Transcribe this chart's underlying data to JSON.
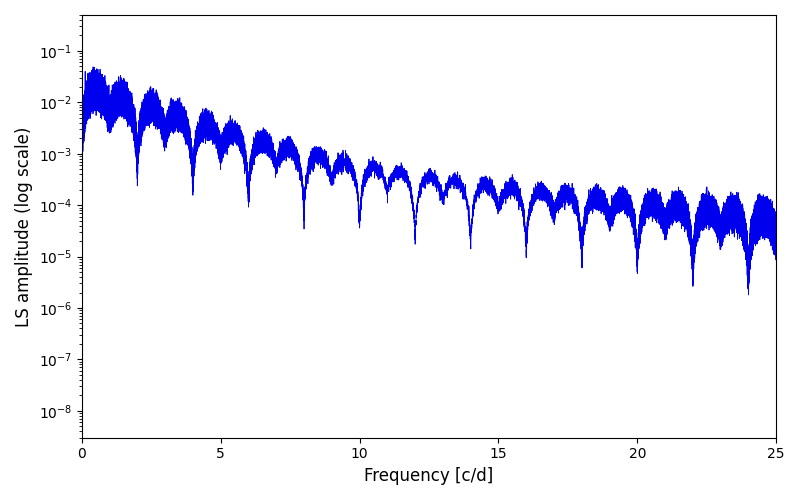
{
  "title": "",
  "xlabel": "Frequency [c/d]",
  "ylabel": "LS amplitude (log scale)",
  "xlim": [
    0,
    25
  ],
  "ylim": [
    3e-09,
    0.5
  ],
  "line_color": "#0000ee",
  "line_width": 0.6,
  "figsize": [
    8.0,
    5.0
  ],
  "dpi": 100,
  "freq_max": 25.0,
  "n_points": 10000,
  "seed": 12345
}
